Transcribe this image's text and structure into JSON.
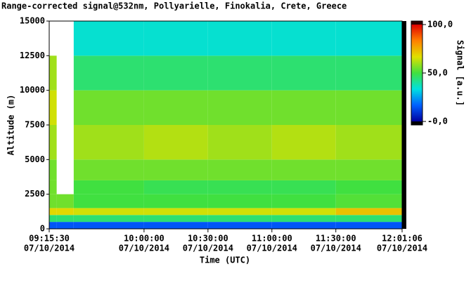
{
  "chart_data": {
    "type": "heatmap",
    "title": "Range-corrected signal@532nm, Pollyarielle, Finokalia, Crete, Greece",
    "x_label": "Time (UTC)",
    "y_label": "Altitude (m)",
    "colorbar_label": "Signal [a.u.]",
    "xlim": [
      555.5,
      721.1
    ],
    "xticks": [
      {
        "value": 555.5,
        "label": [
          "09:15:30",
          "07/10/2014"
        ]
      },
      {
        "value": 600,
        "label": [
          "10:00:00",
          "07/10/2014"
        ]
      },
      {
        "value": 630,
        "label": [
          "10:30:00",
          "07/10/2014"
        ]
      },
      {
        "value": 660,
        "label": [
          "11:00:00",
          "07/10/2014"
        ]
      },
      {
        "value": 690,
        "label": [
          "11:30:00",
          "07/10/2014"
        ]
      },
      {
        "value": 721.1,
        "label": [
          "12:01:06",
          "07/10/2014"
        ]
      }
    ],
    "ylim": [
      0,
      15000
    ],
    "yticks": [
      0,
      2500,
      5000,
      7500,
      10000,
      12500,
      15000
    ],
    "zlim": [
      0,
      100
    ],
    "zticks": [
      {
        "value": 0,
        "label": "-0,0"
      },
      {
        "value": 50,
        "label": "50,0"
      },
      {
        "value": 100,
        "label": "100,0"
      }
    ],
    "colors": [
      "#0000a0",
      "#0060ff",
      "#00e0e0",
      "#40e040",
      "#e0e000",
      "#ff8000",
      "#e00000"
    ],
    "x": [
      555.5,
      559,
      567,
      600,
      630,
      660,
      690
    ],
    "y": [
      0,
      500,
      1000,
      1500,
      2500,
      3500,
      5000,
      7500,
      10000,
      12500
    ],
    "z": [
      [
        15,
        15,
        15,
        15,
        15,
        15,
        15
      ],
      [
        45,
        45,
        45,
        45,
        45,
        45,
        45
      ],
      [
        68,
        68,
        65,
        65,
        65,
        65,
        72
      ],
      [
        55,
        55,
        50,
        50,
        50,
        50,
        52
      ],
      [
        55,
        null,
        50,
        48,
        48,
        48,
        50
      ],
      [
        55,
        null,
        55,
        55,
        55,
        55,
        55
      ],
      [
        60,
        null,
        60,
        62,
        60,
        62,
        60
      ],
      [
        65,
        null,
        55,
        55,
        55,
        55,
        55
      ],
      [
        60,
        null,
        45,
        45,
        45,
        45,
        45
      ],
      [
        null,
        null,
        35,
        35,
        35,
        35,
        35
      ]
    ]
  }
}
